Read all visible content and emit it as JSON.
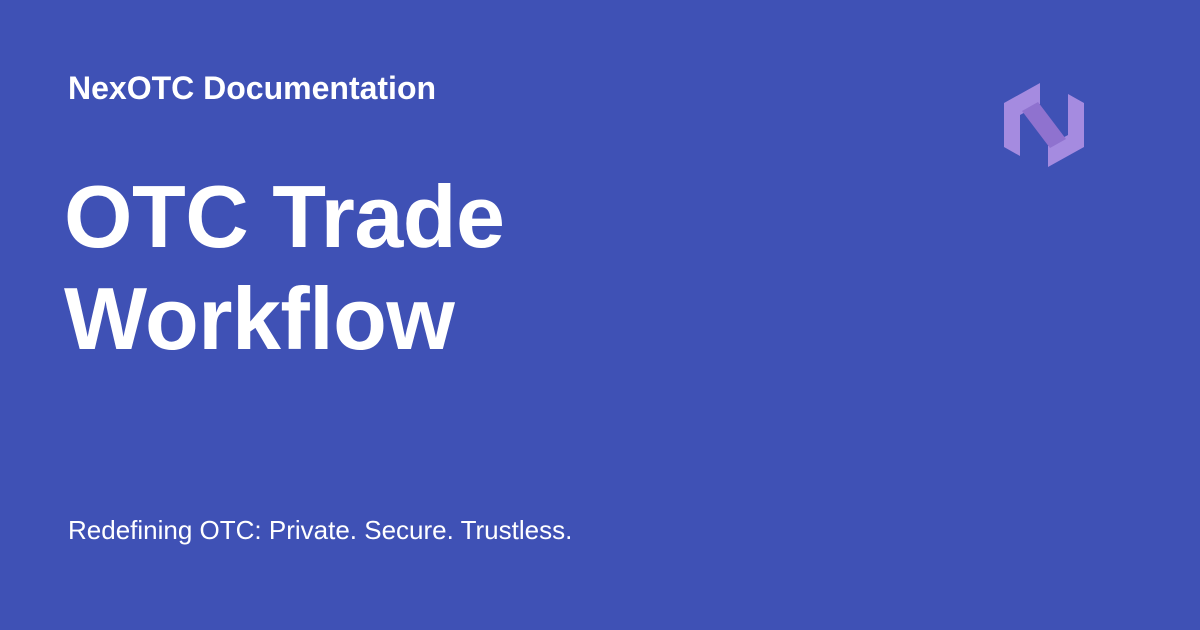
{
  "header": {
    "site_name": "NexOTC Documentation",
    "logo_icon": "nexotc-hexagon-logo-icon"
  },
  "main": {
    "title_line_1": "OTC Trade",
    "title_line_2": "Workflow"
  },
  "footer": {
    "tagline": "Redefining OTC: Private. Secure. Trustless."
  },
  "colors": {
    "background": "#3f51b5",
    "text": "#ffffff",
    "logo_primary": "#9b7fd6",
    "logo_light": "#b39ddb"
  }
}
